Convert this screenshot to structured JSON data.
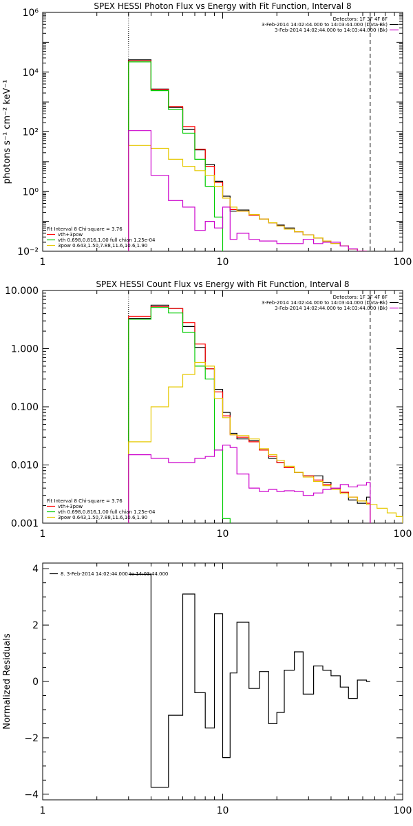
{
  "chart_data": [
    {
      "type": "line",
      "title": "SPEX HESSI Photon Flux vs Energy with Fit Function, Interval 8",
      "xlabel": "",
      "ylabel": "photons s⁻¹ cm⁻² keV⁻¹",
      "xscale": "log",
      "yscale": "log",
      "xlim": [
        1,
        100
      ],
      "ylim": [
        0.01,
        1000000
      ],
      "x_ticks": [
        {
          "v": 1,
          "label": "1"
        },
        {
          "v": 10,
          "label": "10"
        },
        {
          "v": 100,
          "label": "100"
        }
      ],
      "y_ticks": [
        {
          "v": 0.01,
          "label": "10⁻²"
        },
        {
          "v": 1,
          "label": "10⁰"
        },
        {
          "v": 100,
          "label": "10²"
        },
        {
          "v": 10000,
          "label": "10⁴"
        },
        {
          "v": 1000000,
          "label": "10⁶"
        }
      ],
      "vlines": [
        {
          "x": 3,
          "style": "dotted"
        },
        {
          "x": 66,
          "style": "dashed"
        }
      ],
      "legend_topright": {
        "header": "Detectors: 1F 3F 4F 8F",
        "entries": [
          {
            "text": "3-Feb-2014 14:02:44.000 to 14:03:44.000 (Data-Bk)",
            "color": "#000000"
          },
          {
            "text": "3-Feb-2014 14:02:44.000 to 14:03:44.000 (Bk)",
            "color": "#cc00cc"
          }
        ]
      },
      "legend_bottomleft": {
        "header": "Fit Interval 8   Chi-square = 3.76",
        "entries": [
          {
            "text": "vth+3pow",
            "color": "#ff0000"
          },
          {
            "text": "vth 0.698,0.816,1.00  full chian 1.25e-04",
            "color": "#00cc00"
          },
          {
            "text": "3pow 0.643,1.50,7.88,11.6,10.6,1.90",
            "color": "#e6c800"
          }
        ]
      },
      "series": [
        {
          "name": "Data-Bk",
          "color": "#000000",
          "bins": [
            3,
            4,
            5,
            6,
            7,
            8,
            9,
            10,
            11,
            12,
            14,
            16,
            18,
            20,
            22,
            25,
            28,
            32,
            36,
            40,
            45,
            50,
            56,
            63
          ],
          "values": [
            26000,
            2700,
            650,
            120,
            25,
            8,
            2.2,
            0.7,
            0.22,
            0.24,
            0.17,
            0.12,
            0.09,
            0.075,
            0.06,
            0.045,
            0.035,
            0.028,
            0.022,
            0.018,
            0.015,
            0.012,
            0.01
          ]
        },
        {
          "name": "vth+3pow",
          "color": "#ff0000",
          "bins": [
            3,
            4,
            5,
            6,
            7,
            8,
            9,
            10,
            11,
            12,
            14,
            16,
            18,
            20,
            22,
            25,
            28,
            32,
            36,
            40,
            45,
            50,
            56,
            63
          ],
          "values": [
            24000,
            2600,
            700,
            150,
            26,
            7,
            2.0,
            0.6,
            0.25,
            0.22,
            0.16,
            0.12,
            0.09,
            0.07,
            0.055,
            0.045,
            0.035,
            0.028,
            0.022,
            0.018,
            0.015,
            0.012,
            0.01
          ]
        },
        {
          "name": "vth",
          "color": "#00cc00",
          "bins": [
            3,
            4,
            5,
            6,
            7,
            8,
            9,
            10
          ],
          "values": [
            22000,
            2400,
            560,
            90,
            12,
            1.5,
            0.14
          ]
        },
        {
          "name": "3pow",
          "color": "#e6c800",
          "bins": [
            3,
            4,
            5,
            6,
            7,
            8,
            9,
            10,
            11,
            12,
            14,
            16,
            18,
            20,
            22,
            25,
            28,
            32,
            36,
            40,
            45,
            50,
            56,
            63,
            72
          ],
          "values": [
            35,
            28,
            12,
            7,
            5,
            3.5,
            1.5,
            0.6,
            0.3,
            0.22,
            0.17,
            0.12,
            0.09,
            0.07,
            0.055,
            0.045,
            0.035,
            0.028,
            0.022,
            0.018,
            0.015,
            0.012,
            0.01,
            0.009
          ]
        },
        {
          "name": "Bk",
          "color": "#cc00cc",
          "bins": [
            3,
            4,
            5,
            6,
            7,
            8,
            9,
            10,
            11,
            12,
            14,
            16,
            18,
            20,
            22,
            25,
            28,
            32,
            36,
            40,
            45,
            50,
            56,
            63
          ],
          "values": [
            110,
            3.5,
            0.5,
            0.3,
            0.05,
            0.1,
            0.06,
            0.3,
            0.025,
            0.04,
            0.025,
            0.022,
            0.022,
            0.018,
            0.018,
            0.018,
            0.025,
            0.018,
            0.02,
            0.02,
            0.015,
            0.012,
            0.01
          ]
        }
      ]
    },
    {
      "type": "line",
      "title": "SPEX HESSI Count Flux vs Energy with Fit Function, Interval 8",
      "xlabel": "",
      "ylabel": "",
      "xscale": "log",
      "yscale": "log",
      "xlim": [
        1,
        100
      ],
      "ylim": [
        0.001,
        10
      ],
      "x_ticks": [
        {
          "v": 1,
          "label": "1"
        },
        {
          "v": 10,
          "label": "10"
        },
        {
          "v": 100,
          "label": "100"
        }
      ],
      "y_ticks": [
        {
          "v": 0.001,
          "label": "0.001"
        },
        {
          "v": 0.01,
          "label": "0.010"
        },
        {
          "v": 0.1,
          "label": "0.100"
        },
        {
          "v": 1,
          "label": "1.000"
        },
        {
          "v": 10,
          "label": "10.000"
        }
      ],
      "vlines": [
        {
          "x": 3,
          "style": "dotted"
        },
        {
          "x": 66,
          "style": "dashed"
        }
      ],
      "legend_topright": {
        "header": "Detectors: 1F 3F 4F 8F",
        "entries": [
          {
            "text": "3-Feb-2014 14:02:44.000 to 14:03:44.000 (Data-Bk)",
            "color": "#000000"
          },
          {
            "text": "3-Feb-2014 14:02:44.000 to 14:03:44.000 (Bk)",
            "color": "#cc00cc"
          }
        ]
      },
      "legend_bottomleft": {
        "header": "Fit Interval 8   Chi-square = 3.76",
        "entries": [
          {
            "text": "vth+3pow",
            "color": "#ff0000"
          },
          {
            "text": "vth 0.698,0.816,1.00  full chian 1.25e-04",
            "color": "#00cc00"
          },
          {
            "text": "3pow 0.643,1.50,7.88,11.6,10.6,1.90",
            "color": "#e6c800"
          }
        ]
      },
      "series": [
        {
          "name": "Data-Bk",
          "color": "#000000",
          "bins": [
            3,
            4,
            5,
            6,
            7,
            8,
            9,
            10,
            11,
            12,
            14,
            16,
            18,
            20,
            22,
            25,
            28,
            32,
            36,
            40,
            45,
            50,
            56,
            63,
            66
          ],
          "values": [
            3.3,
            5.6,
            4.9,
            2.4,
            1.05,
            0.45,
            0.2,
            0.08,
            0.035,
            0.028,
            0.026,
            0.018,
            0.013,
            0.011,
            0.009,
            0.0075,
            0.0065,
            0.0065,
            0.005,
            0.004,
            0.0034,
            0.0025,
            0.0022,
            0.0028
          ]
        },
        {
          "name": "vth+3pow",
          "color": "#ff0000",
          "bins": [
            3,
            4,
            5,
            6,
            7,
            8,
            9,
            10,
            11,
            12,
            14,
            16,
            18,
            20,
            22,
            25,
            28,
            32,
            36,
            40,
            45,
            50,
            56,
            63,
            66
          ],
          "values": [
            3.6,
            5.3,
            4.9,
            2.8,
            1.2,
            0.45,
            0.18,
            0.07,
            0.033,
            0.03,
            0.025,
            0.018,
            0.014,
            0.011,
            0.009,
            0.0075,
            0.0065,
            0.0055,
            0.0046,
            0.004,
            0.0034,
            0.0028,
            0.0024,
            0.0022
          ]
        },
        {
          "name": "vth",
          "color": "#00cc00",
          "bins": [
            3,
            4,
            5,
            6,
            7,
            8,
            9,
            10,
            11
          ],
          "values": [
            3.2,
            5.1,
            4.1,
            1.9,
            0.5,
            0.3,
            0.018,
            0.0012
          ]
        },
        {
          "name": "3pow",
          "color": "#e6c800",
          "bins": [
            3,
            4,
            5,
            6,
            7,
            8,
            9,
            10,
            11,
            12,
            14,
            16,
            18,
            20,
            22,
            25,
            28,
            32,
            36,
            40,
            45,
            50,
            56,
            63,
            72,
            82,
            92,
            100
          ],
          "values": [
            0.025,
            0.1,
            0.22,
            0.36,
            0.58,
            0.5,
            0.14,
            0.065,
            0.033,
            0.032,
            0.028,
            0.019,
            0.015,
            0.012,
            0.0095,
            0.0075,
            0.0062,
            0.0052,
            0.0044,
            0.0038,
            0.0032,
            0.0028,
            0.0024,
            0.0021,
            0.0018,
            0.0015,
            0.0013
          ]
        },
        {
          "name": "Bk",
          "color": "#cc00cc",
          "bins": [
            3,
            4,
            5,
            6,
            7,
            8,
            9,
            10,
            11,
            12,
            14,
            16,
            18,
            20,
            22,
            25,
            28,
            32,
            36,
            40,
            45,
            50,
            56,
            63,
            66
          ],
          "values": [
            0.015,
            0.013,
            0.011,
            0.011,
            0.013,
            0.014,
            0.018,
            0.022,
            0.02,
            0.007,
            0.004,
            0.0035,
            0.0038,
            0.0035,
            0.0036,
            0.0035,
            0.003,
            0.0033,
            0.0038,
            0.004,
            0.0046,
            0.0042,
            0.0045,
            0.005
          ]
        }
      ]
    },
    {
      "type": "line",
      "title": "",
      "xlabel": "",
      "ylabel": "Normalized Residuals",
      "xscale": "log",
      "yscale": "linear",
      "xlim": [
        1,
        100
      ],
      "ylim": [
        -4.2,
        4.2
      ],
      "x_ticks": [
        {
          "v": 1,
          "label": "1"
        },
        {
          "v": 10,
          "label": "10"
        },
        {
          "v": 100,
          "label": "100"
        }
      ],
      "y_ticks": [
        {
          "v": -4,
          "label": "−4"
        },
        {
          "v": -2,
          "label": "−2"
        },
        {
          "v": 0,
          "label": "0"
        },
        {
          "v": 2,
          "label": "2"
        },
        {
          "v": 4,
          "label": "4"
        }
      ],
      "legend_topleft": {
        "entries": [
          {
            "text": "8. 3-Feb-2014 14:02:44.000 to 14:03:44.000",
            "color": "#000000"
          }
        ]
      },
      "series": [
        {
          "name": "8. 3-Feb-2014 14:02:44.000 to 14:03:44.000",
          "color": "#000000",
          "bins": [
            3,
            4,
            5,
            6,
            7,
            8,
            9,
            10,
            11,
            12,
            14,
            16,
            18,
            20,
            22,
            25,
            28,
            32,
            36,
            40,
            45,
            50,
            56,
            63,
            66
          ],
          "values": [
            3.8,
            -3.75,
            -1.2,
            3.1,
            -0.4,
            -1.65,
            2.4,
            -2.7,
            0.3,
            2.1,
            -0.25,
            0.35,
            -1.5,
            -1.1,
            0.4,
            1.05,
            -0.45,
            0.55,
            0.4,
            0.2,
            -0.2,
            -0.6,
            0.05,
            0.0
          ]
        }
      ]
    }
  ]
}
